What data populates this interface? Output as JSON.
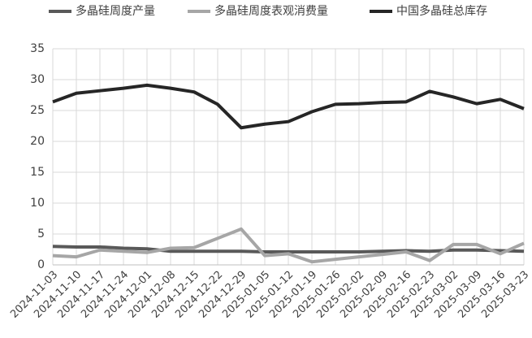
{
  "chart_data": {
    "type": "line",
    "categories": [
      "2024-11-03",
      "2024-11-10",
      "2024-11-17",
      "2024-11-24",
      "2024-12-01",
      "2024-12-08",
      "2024-12-15",
      "2024-12-22",
      "2024-12-29",
      "2025-01-05",
      "2025-01-12",
      "2025-01-19",
      "2025-01-26",
      "2025-02-02",
      "2025-02-09",
      "2025-02-16",
      "2025-02-23",
      "2025-03-02",
      "2025-03-09",
      "2025-03-16",
      "2025-03-23"
    ],
    "series": [
      {
        "name": "多晶硅周度产量",
        "color": "#595959",
        "values": [
          3.0,
          2.9,
          2.9,
          2.7,
          2.6,
          2.2,
          2.2,
          2.2,
          2.2,
          2.1,
          2.1,
          2.1,
          2.1,
          2.1,
          2.2,
          2.3,
          2.2,
          2.4,
          2.4,
          2.3,
          2.2
        ]
      },
      {
        "name": "多晶硅周度表观消费量",
        "color": "#a6a6a6",
        "values": [
          1.5,
          1.3,
          2.4,
          2.2,
          2.0,
          2.7,
          2.8,
          4.3,
          5.8,
          1.5,
          1.8,
          0.5,
          0.9,
          1.3,
          1.7,
          2.1,
          0.7,
          3.3,
          3.3,
          1.8,
          3.5
        ]
      },
      {
        "name": "中国多晶硅总库存",
        "color": "#262626",
        "values": [
          26.4,
          27.8,
          28.2,
          28.6,
          29.1,
          28.6,
          28.0,
          26.0,
          22.2,
          22.8,
          23.2,
          24.8,
          26.0,
          26.1,
          26.3,
          26.4,
          28.1,
          27.2,
          26.1,
          26.8,
          25.3
        ]
      }
    ],
    "ylim": [
      0,
      35
    ],
    "yticks": [
      0,
      5,
      10,
      15,
      20,
      25,
      30,
      35
    ],
    "grid": true,
    "legend": "top"
  }
}
